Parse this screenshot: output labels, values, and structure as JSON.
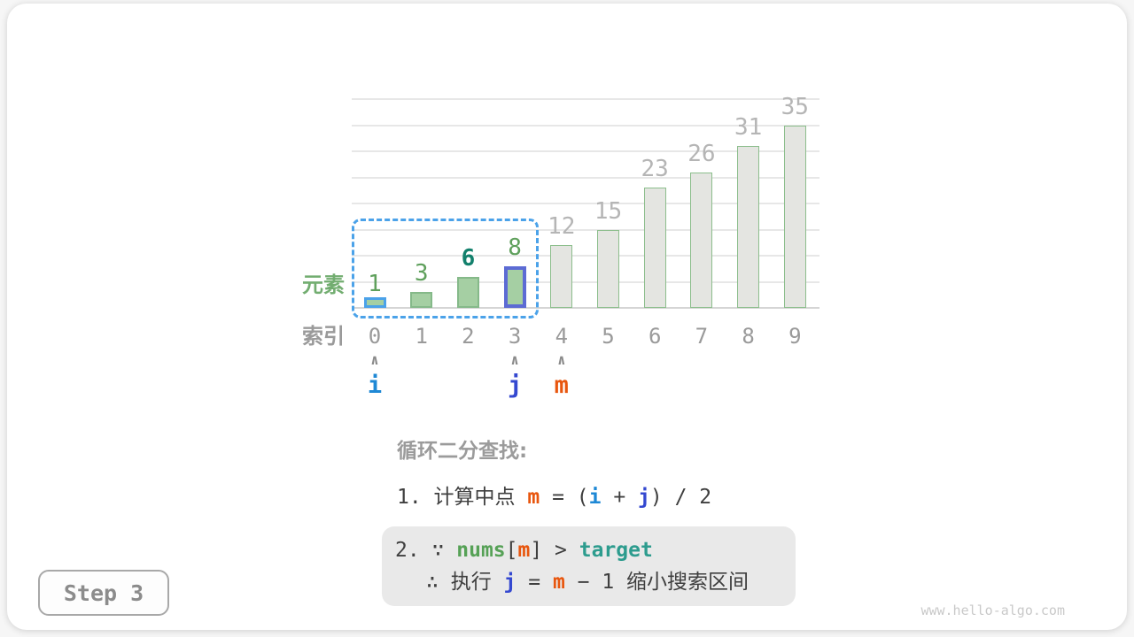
{
  "page": {
    "step_label": "Step 3",
    "watermark": "www.hello-algo.com"
  },
  "chart_data": {
    "type": "bar",
    "title": "",
    "xlabel": "索引",
    "ylabel": "元素",
    "categories": [
      "0",
      "1",
      "2",
      "3",
      "4",
      "5",
      "6",
      "7",
      "8",
      "9"
    ],
    "values": [
      1,
      3,
      6,
      8,
      12,
      15,
      23,
      26,
      31,
      35
    ],
    "ylim": [
      0,
      40
    ],
    "grid_step": 5,
    "grid_on": true,
    "legend": "none",
    "search_range": {
      "start_index": 0,
      "end_index": 3
    },
    "i_bar_index": 0,
    "j_bar_index": 3,
    "target_label_index": 2
  },
  "pointers": [
    {
      "label": "i",
      "index": 0,
      "color_class": "tk-i",
      "color": "#1e88d5"
    },
    {
      "label": "j",
      "index": 3,
      "color_class": "tk-j",
      "color": "#3448d0"
    },
    {
      "label": "m",
      "index": 4,
      "color_class": "tk-m",
      "color": "#e8560e"
    }
  ],
  "caret_glyph": "∧",
  "explanation": {
    "title": "循环二分查找:",
    "line1": [
      {
        "c": "t",
        "t": "1. 计算中点 "
      },
      {
        "c": "m",
        "t": "m"
      },
      {
        "c": "t",
        "t": " = ("
      },
      {
        "c": "i",
        "t": "i"
      },
      {
        "c": "t",
        "t": " + "
      },
      {
        "c": "j",
        "t": "j"
      },
      {
        "c": "t",
        "t": ") / 2"
      }
    ],
    "box_line1": [
      {
        "c": "t",
        "t": "2. ∵ "
      },
      {
        "c": "nums",
        "t": "nums"
      },
      {
        "c": "t",
        "t": "["
      },
      {
        "c": "m",
        "t": "m"
      },
      {
        "c": "t",
        "t": "] > "
      },
      {
        "c": "target",
        "t": "target"
      }
    ],
    "box_line2": [
      {
        "c": "t",
        "t": "∴ 执行 "
      },
      {
        "c": "j",
        "t": "j"
      },
      {
        "c": "t",
        "t": " = "
      },
      {
        "c": "m",
        "t": "m"
      },
      {
        "c": "t",
        "t": " − 1 缩小搜索区间"
      }
    ]
  },
  "colors": {
    "green_bar_fill": "#a5cfa3",
    "green_bar_border": "#85b989",
    "gray_bar_fill": "#e4e5e1",
    "gray_bar_border": "#8cbe8c",
    "i_highlight_blue": "#4ba2e9",
    "j_highlight_indigo": "#5c6bd4",
    "m_orange": "#e8560e",
    "target_teal": "#2d9c8e",
    "nums_green": "#56a156",
    "gray_text": "#9a9a9a"
  }
}
